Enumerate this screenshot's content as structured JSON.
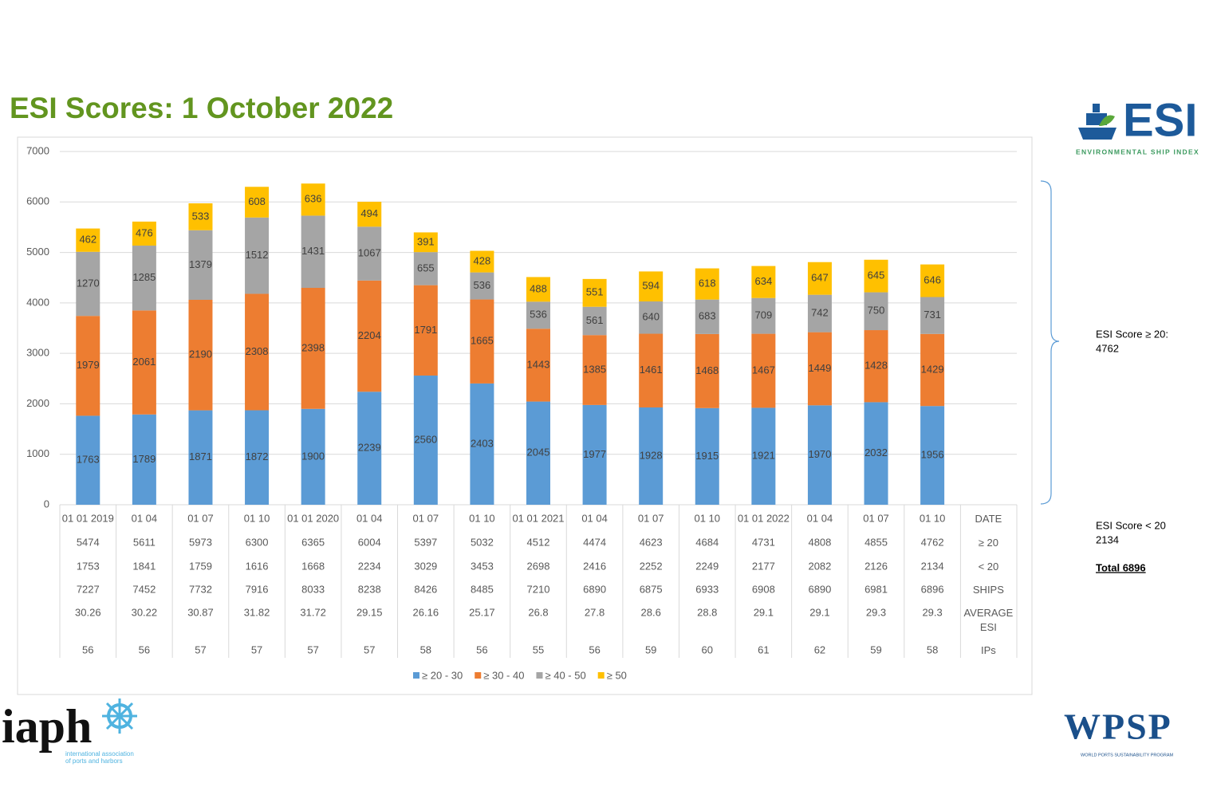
{
  "title": "ESI Scores: 1 October 2022",
  "chart_data": {
    "type": "stacked_bar",
    "categories": [
      "01 01 2019",
      "01 04",
      "01 07",
      "01 10",
      "01 01 2020",
      "01 04",
      "01 07",
      "01 10",
      "01 01 2021",
      "01 04",
      "01 07",
      "01 10",
      "01 01 2022",
      "01 04",
      "01 07",
      "01 10"
    ],
    "series": [
      {
        "name": "≥ 20 - 30",
        "color": "#5b9bd5",
        "values": [
          1763,
          1789,
          1871,
          1872,
          1900,
          2239,
          2560,
          2403,
          2045,
          1977,
          1928,
          1915,
          1921,
          1970,
          2032,
          1956
        ]
      },
      {
        "name": "≥ 30 - 40",
        "color": "#ed7d31",
        "values": [
          1979,
          2061,
          2190,
          2308,
          2398,
          2204,
          1791,
          1665,
          1443,
          1385,
          1461,
          1468,
          1467,
          1449,
          1428,
          1429
        ]
      },
      {
        "name": "≥ 40 - 50",
        "color": "#a5a5a5",
        "values": [
          1270,
          1285,
          1379,
          1512,
          1431,
          1067,
          655,
          536,
          536,
          561,
          640,
          683,
          709,
          742,
          750,
          731
        ]
      },
      {
        "name": "≥ 50",
        "color": "#ffc000",
        "values": [
          462,
          476,
          533,
          608,
          636,
          494,
          391,
          428,
          488,
          551,
          594,
          618,
          634,
          647,
          645,
          646
        ]
      }
    ],
    "ylim": [
      0,
      7000
    ],
    "yticks": [
      0,
      1000,
      2000,
      3000,
      4000,
      5000,
      6000,
      7000
    ],
    "grid": true,
    "legend": "bottom"
  },
  "table": {
    "date_label": "DATE",
    "rows": [
      {
        "label": "≥ 20",
        "values": [
          5474,
          5611,
          5973,
          6300,
          6365,
          6004,
          5397,
          5032,
          4512,
          4474,
          4623,
          4684,
          4731,
          4808,
          4855,
          4762
        ]
      },
      {
        "label": "< 20",
        "values": [
          1753,
          1841,
          1759,
          1616,
          1668,
          2234,
          3029,
          3453,
          2698,
          2416,
          2252,
          2249,
          2177,
          2082,
          2126,
          2134
        ]
      },
      {
        "label": "SHIPS",
        "values": [
          7227,
          7452,
          7732,
          7916,
          8033,
          8238,
          8426,
          8485,
          7210,
          6890,
          6875,
          6933,
          6908,
          6890,
          6981,
          6896
        ]
      },
      {
        "label": "AVERAGE ESI",
        "values": [
          30.26,
          30.22,
          30.87,
          31.82,
          31.72,
          29.15,
          26.16,
          25.17,
          26.8,
          27.8,
          28.6,
          28.8,
          29.1,
          29.1,
          29.3,
          29.3
        ]
      },
      {
        "label": "IPs",
        "values": [
          56,
          56,
          57,
          57,
          57,
          57,
          58,
          56,
          55,
          56,
          59,
          60,
          61,
          62,
          59,
          58
        ]
      }
    ]
  },
  "notes": {
    "above_label": "ESI Score ≥ 20:",
    "above_value": "4762",
    "below_label": "ESI Score < 20",
    "below_value": "2134",
    "total": "Total 6896"
  },
  "logos": {
    "esi": "ESI",
    "esi_sub": "ENVIRONMENTAL SHIP INDEX",
    "iaph": "iaph",
    "iaph_sub_1": "international association",
    "iaph_sub_2": "of ports and harbors",
    "wpsp": "WPSP",
    "wpsp_sub": "WORLD PORTS SUSTAINABILITY PROGRAM"
  }
}
